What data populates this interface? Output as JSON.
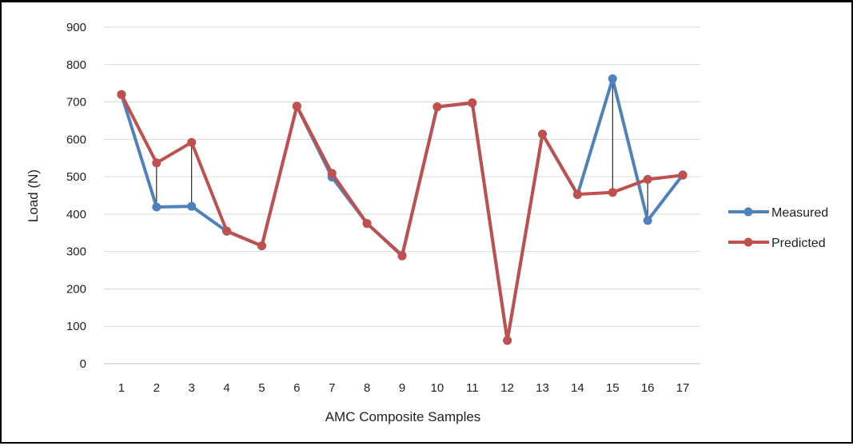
{
  "chart_data": {
    "type": "line",
    "xlabel": "AMC Composite Samples",
    "ylabel": "Load (N)",
    "categories": [
      "1",
      "2",
      "3",
      "4",
      "5",
      "6",
      "7",
      "8",
      "9",
      "10",
      "11",
      "12",
      "13",
      "14",
      "15",
      "16",
      "17"
    ],
    "ylim": [
      0,
      900
    ],
    "yticks": [
      0,
      100,
      200,
      300,
      400,
      500,
      600,
      700,
      800,
      900
    ],
    "grid": true,
    "legend_position": "right",
    "series": [
      {
        "name": "Measured",
        "color": "#4F81BD",
        "values": [
          720,
          419,
          421,
          354,
          315,
          688,
          499,
          375,
          290,
          687,
          697,
          62,
          614,
          452,
          762,
          383,
          505
        ]
      },
      {
        "name": "Predicted",
        "color": "#C0504D",
        "values": [
          720,
          537,
          592,
          355,
          315,
          689,
          509,
          375,
          288,
          687,
          698,
          62,
          614,
          453,
          458,
          493,
          504
        ]
      }
    ]
  }
}
